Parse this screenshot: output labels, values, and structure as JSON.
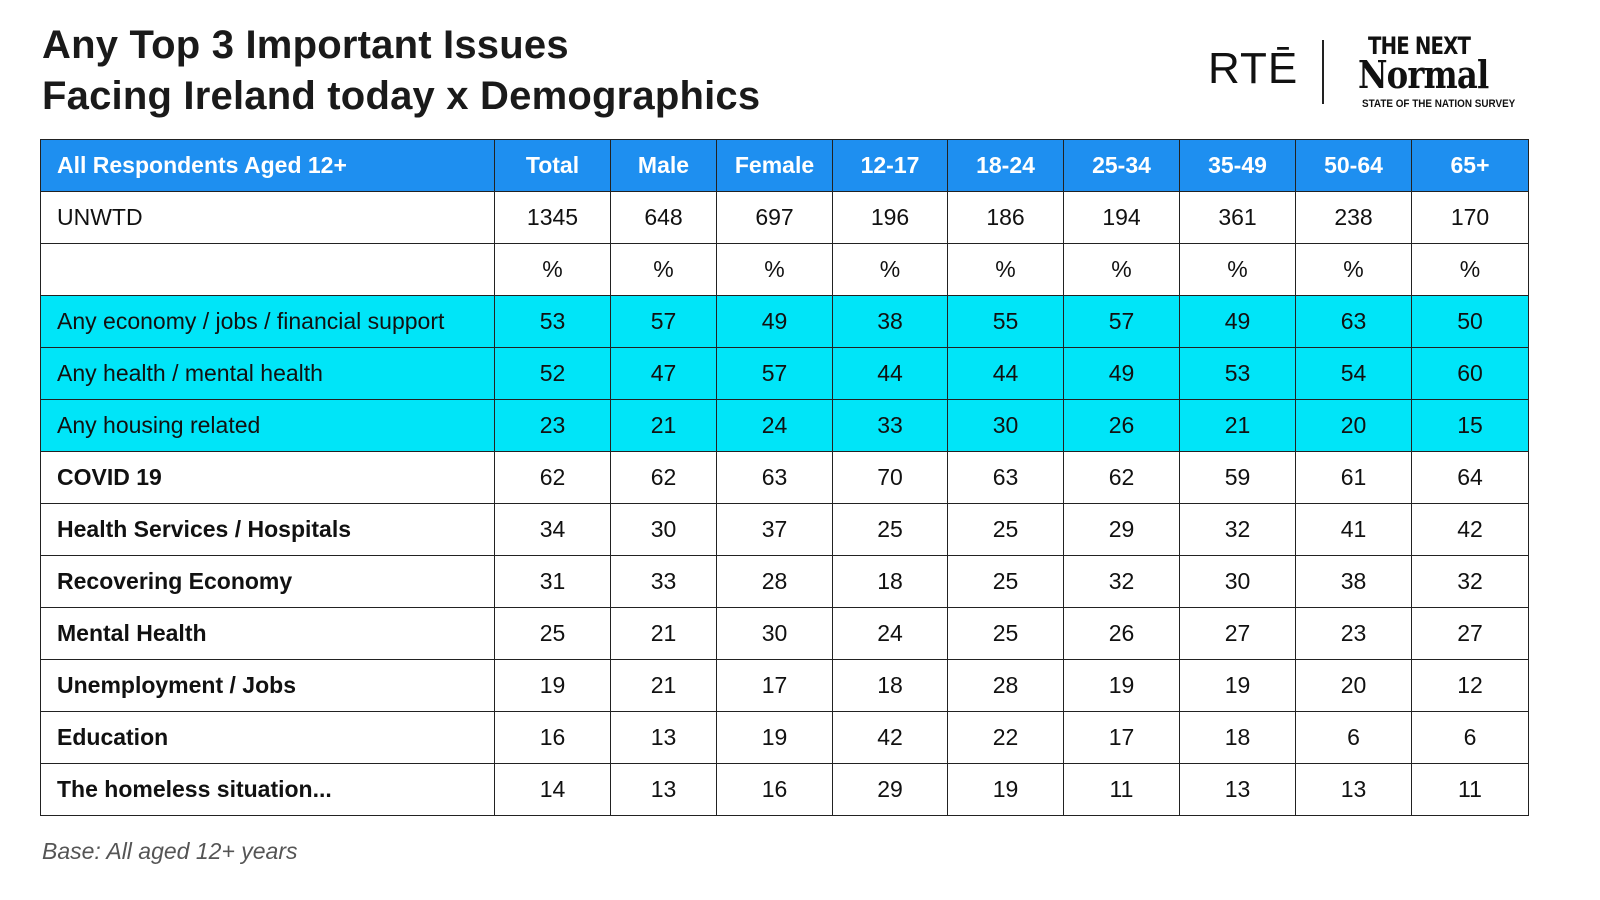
{
  "title": {
    "line1": "Any Top 3 Important Issues",
    "line2": "Facing Ireland today x Demographics"
  },
  "brand": {
    "rte": "RTĒ",
    "tnn_the": "THE NEXT",
    "tnn_normal": "Normal",
    "tnn_sub": "STATE OF THE NATION SURVEY"
  },
  "colors": {
    "header_bg": "#1e8ff0",
    "highlight_bg": "#00e5f8",
    "border": "#222222"
  },
  "footnote": "Base: All aged 12+ years",
  "chart_data": {
    "type": "table",
    "corner_label": "All Respondents Aged 12+",
    "columns": [
      "Total",
      "Male",
      "Female",
      "12-17",
      "18-24",
      "25-34",
      "35-49",
      "50-64",
      "65+"
    ],
    "rows": [
      {
        "label": "UNWTD",
        "style": "plain",
        "values": [
          "1345",
          "648",
          "697",
          "196",
          "186",
          "194",
          "361",
          "238",
          "170"
        ]
      },
      {
        "label": "",
        "style": "plain",
        "values": [
          "%",
          "%",
          "%",
          "%",
          "%",
          "%",
          "%",
          "%",
          "%"
        ]
      },
      {
        "label": "Any economy / jobs / financial support",
        "style": "highlight",
        "values": [
          "53",
          "57",
          "49",
          "38",
          "55",
          "57",
          "49",
          "63",
          "50"
        ]
      },
      {
        "label": "Any health / mental health",
        "style": "highlight",
        "values": [
          "52",
          "47",
          "57",
          "44",
          "44",
          "49",
          "53",
          "54",
          "60"
        ]
      },
      {
        "label": "Any housing related",
        "style": "highlight",
        "values": [
          "23",
          "21",
          "24",
          "33",
          "30",
          "26",
          "21",
          "20",
          "15"
        ]
      },
      {
        "label": "COVID 19",
        "style": "item",
        "values": [
          "62",
          "62",
          "63",
          "70",
          "63",
          "62",
          "59",
          "61",
          "64"
        ]
      },
      {
        "label": "Health Services / Hospitals",
        "style": "item",
        "values": [
          "34",
          "30",
          "37",
          "25",
          "25",
          "29",
          "32",
          "41",
          "42"
        ]
      },
      {
        "label": "Recovering Economy",
        "style": "item",
        "values": [
          "31",
          "33",
          "28",
          "18",
          "25",
          "32",
          "30",
          "38",
          "32"
        ]
      },
      {
        "label": "Mental Health",
        "style": "item",
        "values": [
          "25",
          "21",
          "30",
          "24",
          "25",
          "26",
          "27",
          "23",
          "27"
        ]
      },
      {
        "label": "Unemployment / Jobs",
        "style": "item",
        "values": [
          "19",
          "21",
          "17",
          "18",
          "28",
          "19",
          "19",
          "20",
          "12"
        ]
      },
      {
        "label": "Education",
        "style": "item",
        "values": [
          "16",
          "13",
          "19",
          "42",
          "22",
          "17",
          "18",
          "6",
          "6"
        ]
      },
      {
        "label": "The homeless situation...",
        "style": "item",
        "values": [
          "14",
          "13",
          "16",
          "29",
          "19",
          "11",
          "13",
          "13",
          "11"
        ]
      }
    ]
  }
}
